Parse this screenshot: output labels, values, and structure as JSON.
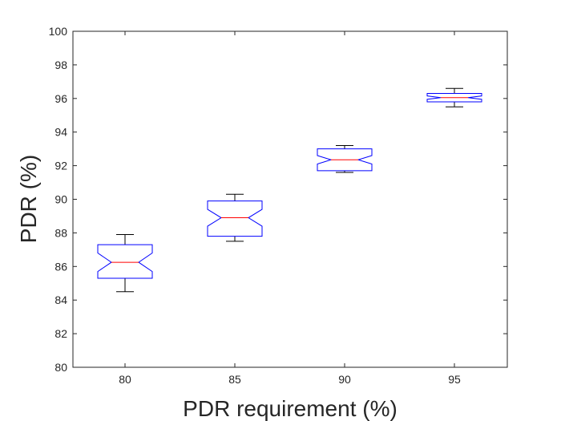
{
  "chart_data": {
    "type": "boxplot",
    "xlabel": "PDR requirement (%)",
    "ylabel": "PDR (%)",
    "ylim": [
      80,
      100
    ],
    "yticks": [
      80,
      82,
      84,
      86,
      88,
      90,
      92,
      94,
      96,
      98,
      100
    ],
    "categories": [
      "80",
      "85",
      "90",
      "95"
    ],
    "notched": true,
    "grid": false,
    "colors": {
      "box": "#0000ff",
      "median": "#ff0000",
      "whisker": "#000000",
      "axis": "#262626"
    },
    "boxes": [
      {
        "category": "80",
        "whisker_low": 84.5,
        "q1": 85.3,
        "median": 86.25,
        "q3": 87.3,
        "whisker_high": 87.9,
        "notch_low": 85.7,
        "notch_high": 86.8
      },
      {
        "category": "85",
        "whisker_low": 87.5,
        "q1": 87.8,
        "median": 88.9,
        "q3": 89.9,
        "whisker_high": 90.3,
        "notch_low": 88.4,
        "notch_high": 89.4
      },
      {
        "category": "90",
        "whisker_low": 91.6,
        "q1": 91.7,
        "median": 92.35,
        "q3": 93.0,
        "whisker_high": 93.2,
        "notch_low": 92.1,
        "notch_high": 92.6
      },
      {
        "category": "95",
        "whisker_low": 95.5,
        "q1": 95.8,
        "median": 96.05,
        "q3": 96.3,
        "whisker_high": 96.6,
        "notch_low": 95.95,
        "notch_high": 96.15
      }
    ]
  }
}
